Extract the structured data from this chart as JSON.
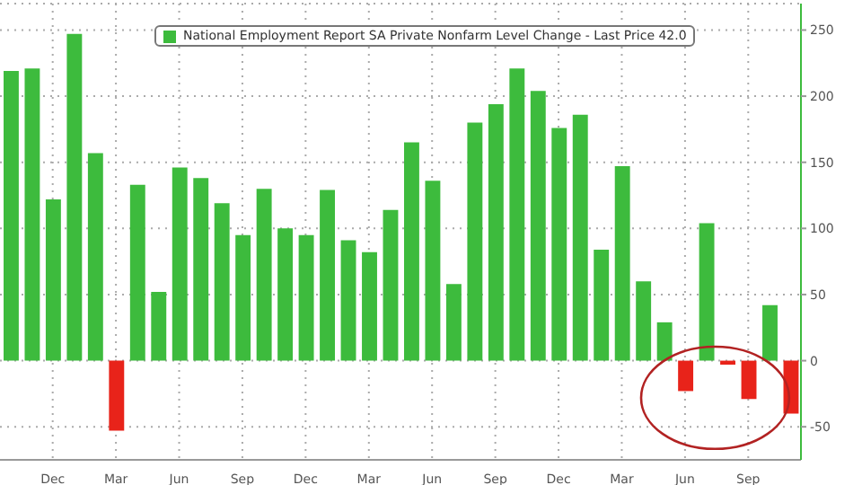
{
  "chart_data": {
    "type": "bar",
    "categories": [
      null,
      null,
      "Dec",
      null,
      null,
      "Mar",
      null,
      null,
      "Jun",
      null,
      null,
      "Sep",
      null,
      null,
      "Dec",
      null,
      null,
      "Mar",
      null,
      null,
      "Jun",
      null,
      null,
      "Sep",
      null,
      null,
      "Dec",
      null,
      null,
      "Mar",
      null,
      null,
      "Jun",
      null,
      null,
      "Sep",
      null,
      null
    ],
    "series": [
      {
        "name": "National Employment Report SA Private Nonfarm Level Change - Last Price 42.0",
        "color": "#3dbb3d",
        "values": [
          219,
          221,
          122,
          247,
          157,
          -53,
          133,
          52,
          146,
          138,
          119,
          95,
          130,
          100,
          95,
          129,
          91,
          82,
          114,
          165,
          136,
          58,
          180,
          194,
          221,
          204,
          176,
          186,
          84,
          147,
          60,
          29,
          -23,
          104,
          -3,
          -29,
          42,
          -40
        ],
        "colors": [
          "#3dbb3d",
          "#3dbb3d",
          "#3dbb3d",
          "#3dbb3d",
          "#3dbb3d",
          "#e8231a",
          "#3dbb3d",
          "#3dbb3d",
          "#3dbb3d",
          "#3dbb3d",
          "#3dbb3d",
          "#3dbb3d",
          "#3dbb3d",
          "#3dbb3d",
          "#3dbb3d",
          "#3dbb3d",
          "#3dbb3d",
          "#3dbb3d",
          "#3dbb3d",
          "#3dbb3d",
          "#3dbb3d",
          "#3dbb3d",
          "#3dbb3d",
          "#3dbb3d",
          "#3dbb3d",
          "#3dbb3d",
          "#3dbb3d",
          "#3dbb3d",
          "#3dbb3d",
          "#3dbb3d",
          "#3dbb3d",
          "#3dbb3d",
          "#e8231a",
          "#3dbb3d",
          "#e8231a",
          "#e8231a",
          "#3dbb3d",
          "#e8231a"
        ]
      }
    ],
    "ylim": [
      -75,
      270
    ],
    "yticks": [
      -50,
      0,
      50,
      100,
      150,
      200,
      250
    ],
    "grid": true,
    "legend": "top left"
  }
}
